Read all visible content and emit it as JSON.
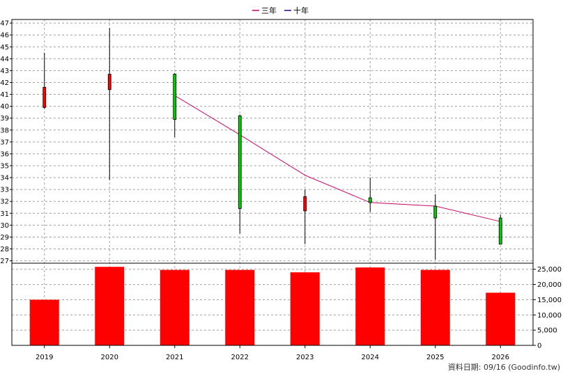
{
  "legend": {
    "items": [
      {
        "label": "三年",
        "color": "#cc0066"
      },
      {
        "label": "十年",
        "color": "#330099"
      }
    ]
  },
  "footer": {
    "text": "資料日期: 09/16 (Goodinfo.tw)"
  },
  "colors": {
    "up": "#ff0000",
    "down": "#00cc00",
    "ma": "#cc0066",
    "volume": "#ff0000",
    "grid": "#a0a0a0"
  },
  "chart_data": [
    {
      "type": "candlestick",
      "title": "",
      "categories": [
        "2019",
        "2020",
        "2021",
        "2022",
        "2023",
        "2024",
        "2025",
        "2026"
      ],
      "ylim": [
        26.8,
        47.3
      ],
      "y_ticks": [
        27,
        28,
        29,
        30,
        31,
        32,
        33,
        34,
        35,
        36,
        37,
        38,
        39,
        40,
        41,
        42,
        43,
        44,
        45,
        46,
        47
      ],
      "candles": [
        {
          "x": "2019",
          "open": 39.9,
          "high": 44.5,
          "low": 39.8,
          "close": 41.6,
          "direction": "up"
        },
        {
          "x": "2020",
          "open": 41.4,
          "high": 46.6,
          "low": 33.8,
          "close": 42.7,
          "direction": "up"
        },
        {
          "x": "2021",
          "open": 42.7,
          "high": 42.8,
          "low": 37.4,
          "close": 38.9,
          "direction": "down"
        },
        {
          "x": "2022",
          "open": 39.2,
          "high": 39.3,
          "low": 29.3,
          "close": 31.4,
          "direction": "down"
        },
        {
          "x": "2023",
          "open": 31.2,
          "high": 33.0,
          "low": 28.4,
          "close": 32.4,
          "direction": "up"
        },
        {
          "x": "2024",
          "open": 32.3,
          "high": 34.0,
          "low": 31.1,
          "close": 31.9,
          "direction": "down"
        },
        {
          "x": "2025",
          "open": 31.6,
          "high": 32.6,
          "low": 27.1,
          "close": 30.6,
          "direction": "down"
        },
        {
          "x": "2026",
          "open": 30.6,
          "high": 30.9,
          "low": 28.4,
          "close": 28.4,
          "direction": "down"
        }
      ],
      "series": [
        {
          "name": "三年",
          "values": [
            null,
            null,
            40.9,
            37.6,
            34.2,
            31.9,
            31.6,
            30.3
          ]
        }
      ],
      "grid": true
    },
    {
      "type": "bar",
      "title": "",
      "categories": [
        "2019",
        "2020",
        "2021",
        "2022",
        "2023",
        "2024",
        "2025",
        "2026"
      ],
      "values": [
        15000,
        25800,
        24800,
        24800,
        24000,
        25600,
        24800,
        17300
      ],
      "ylim": [
        0,
        27000
      ],
      "y_ticks": [
        0,
        5000,
        10000,
        15000,
        20000,
        25000
      ],
      "y_tick_labels": [
        "0",
        "5,000",
        "10,000",
        "15,000",
        "20,000",
        "25,000"
      ],
      "grid": true
    }
  ]
}
